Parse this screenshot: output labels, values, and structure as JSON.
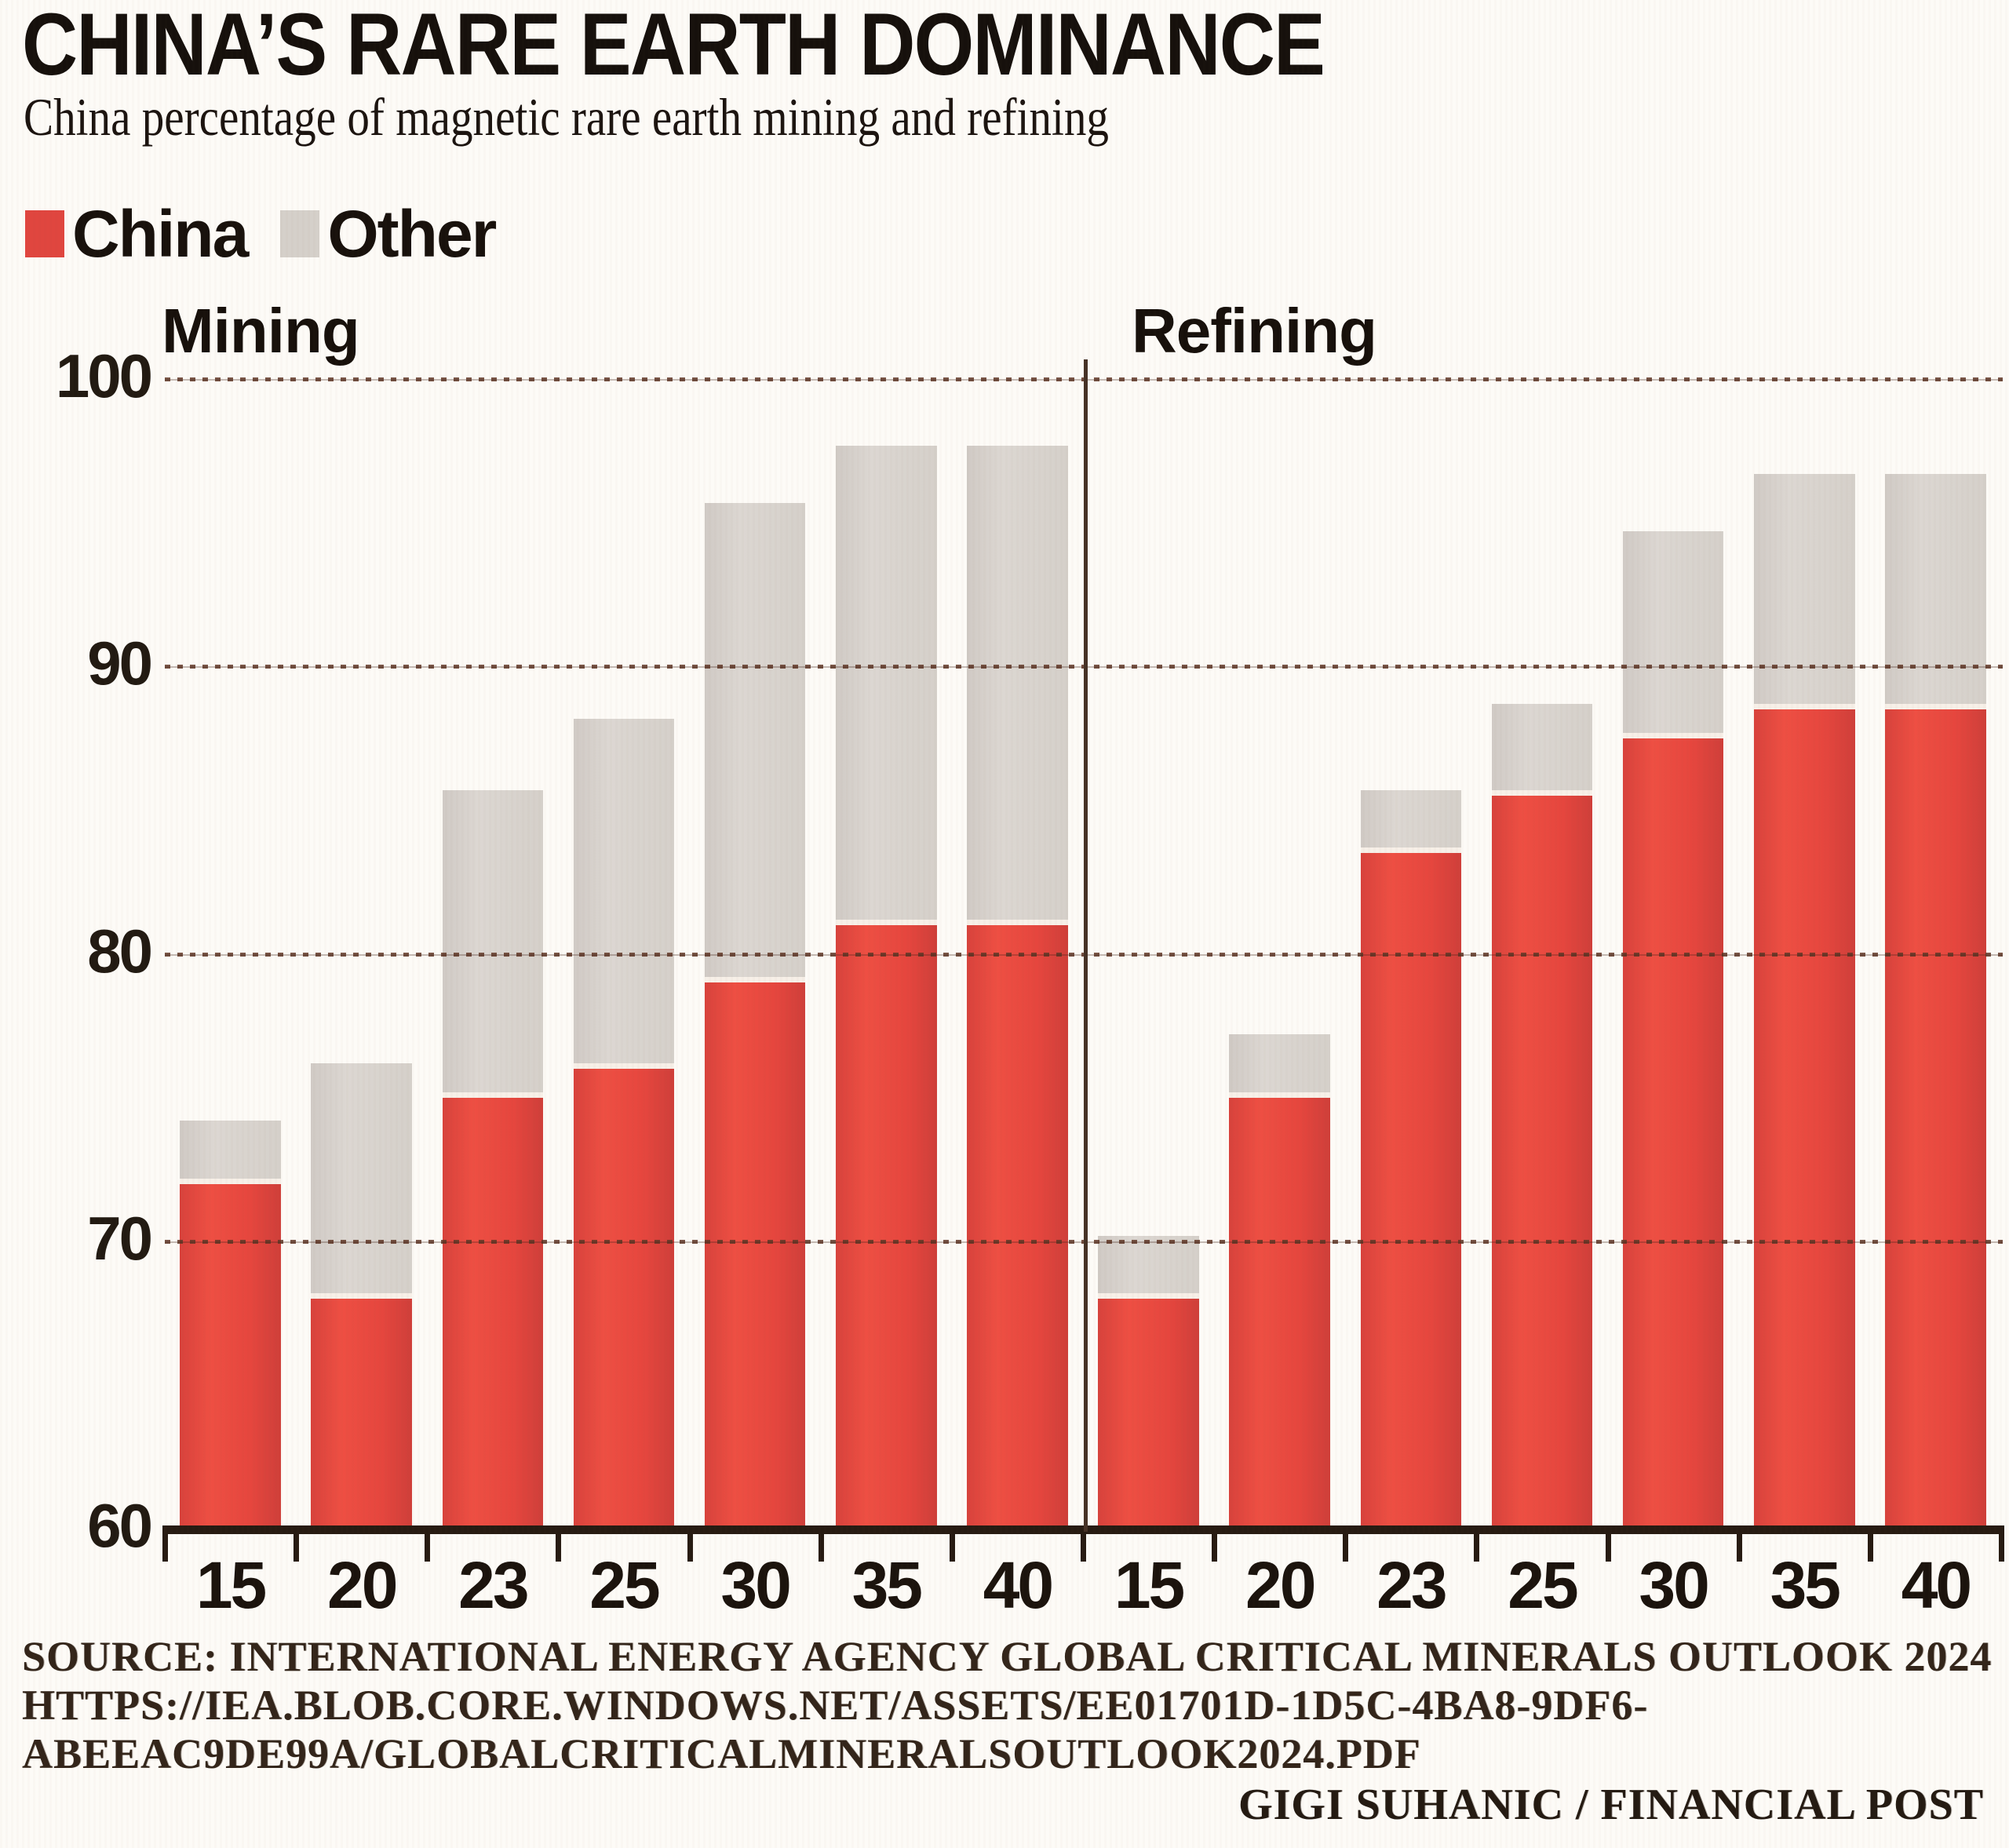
{
  "title": "CHINA’S RARE EARTH DOMINANCE",
  "subtitle": "China percentage of magnetic rare earth mining and refining",
  "legend": [
    {
      "label": "China",
      "color": "#e0463f"
    },
    {
      "label": "Other",
      "color": "#d5d0ca"
    }
  ],
  "source_lines": [
    "SOURCE: INTERNATIONAL ENERGY AGENCY GLOBAL CRITICAL MINERALS OUTLOOK 2024",
    "HTTPS://IEA.BLOB.CORE.WINDOWS.NET/ASSETS/EE01701D-1D5C-4BA8-9DF6-",
    "ABEEAC9DE99A/GLOBALCRITICALMINERALSOUTLOOK2024.PDF"
  ],
  "credit": "GIGI SUHANIC / FINANCIAL POST",
  "chart_data": {
    "type": "bar",
    "stacked": true,
    "unit": "percent",
    "title": "CHINA’S RARE EARTH DOMINANCE",
    "subtitle": "China percentage of magnetic rare earth mining and refining",
    "categories": [
      "15",
      "20",
      "23",
      "25",
      "30",
      "35",
      "40"
    ],
    "ylim": [
      60,
      100
    ],
    "y_ticks": [
      100,
      90,
      80,
      70,
      60
    ],
    "grid": "horizontal-dotted",
    "legend_position": "top-left",
    "panels": [
      {
        "label": "Mining",
        "series": [
          {
            "name": "China",
            "color": "#e0463f",
            "values": [
              72,
              68,
              75,
              76,
              79,
              81,
              81
            ]
          },
          {
            "name": "Other",
            "color": "#d5d0ca",
            "values": [
              2,
              8,
              10.5,
              12,
              16.5,
              16.5,
              16.5
            ]
          }
        ]
      },
      {
        "label": "Refining",
        "series": [
          {
            "name": "China",
            "color": "#e0463f",
            "values": [
              68,
              75,
              83.5,
              85.5,
              87.5,
              88.5,
              88.5
            ]
          },
          {
            "name": "Other",
            "color": "#d5d0ca",
            "values": [
              2,
              2,
              2,
              3,
              7,
              8,
              8
            ]
          }
        ]
      }
    ]
  }
}
